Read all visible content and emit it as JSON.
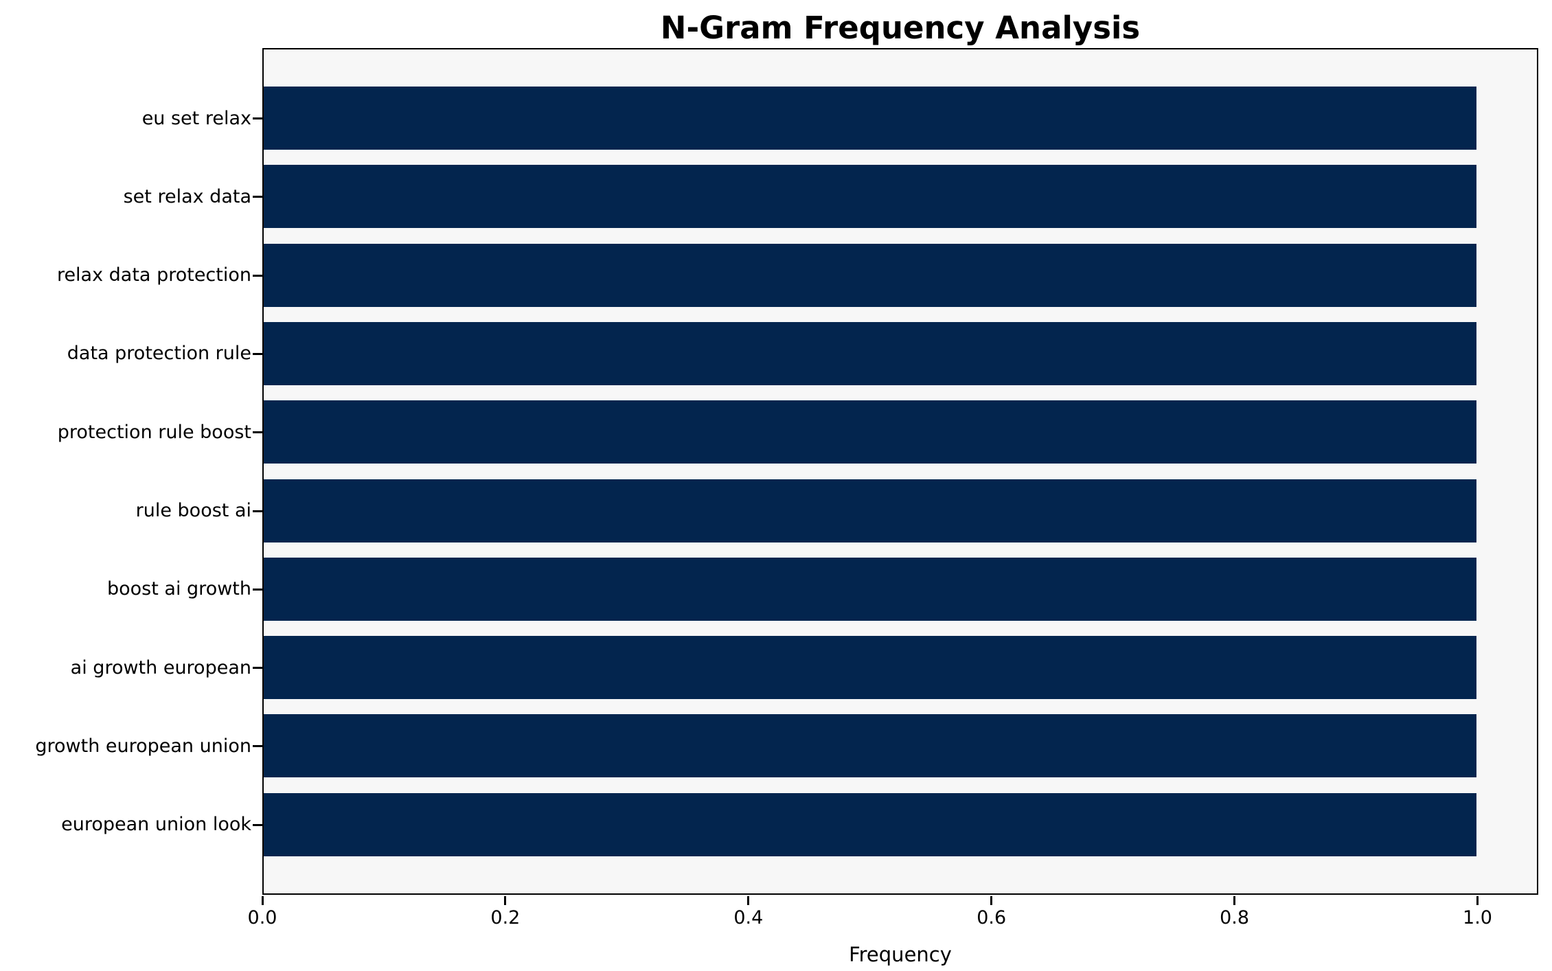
{
  "chart_data": {
    "type": "bar",
    "orientation": "horizontal",
    "title": "N-Gram Frequency Analysis",
    "xlabel": "Frequency",
    "ylabel": "",
    "categories": [
      "eu set relax",
      "set relax data",
      "relax data protection",
      "data protection rule",
      "protection rule boost",
      "rule boost ai",
      "boost ai growth",
      "ai growth european",
      "growth european union",
      "european union look"
    ],
    "values": [
      1.0,
      1.0,
      1.0,
      1.0,
      1.0,
      1.0,
      1.0,
      1.0,
      1.0,
      1.0
    ],
    "xlim": [
      0.0,
      1.05
    ],
    "xticks": [
      0.0,
      0.2,
      0.4,
      0.6,
      0.8,
      1.0
    ],
    "xtick_labels": [
      "0.0",
      "0.2",
      "0.4",
      "0.6",
      "0.8",
      "1.0"
    ],
    "legend": "none",
    "grid": false,
    "colors": {
      "bar": "#03254e",
      "plot_background": "#f7f7f7",
      "figure_background": "#ffffff",
      "axis": "#000000",
      "text": "#000000"
    }
  }
}
